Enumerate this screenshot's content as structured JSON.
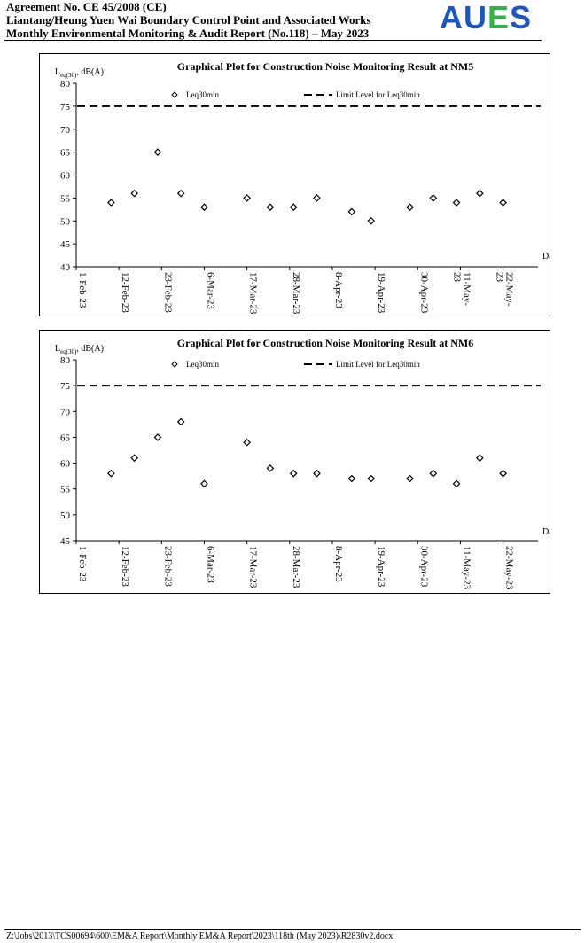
{
  "header": {
    "line1": "Agreement No. CE 45/2008 (CE)",
    "line2": "Liantang/Heung Yuen Wai Boundary Control Point and Associated Works",
    "line3": "Monthly Environmental Monitoring & Audit Report (No.118) – May 2023",
    "logo": {
      "letters": [
        "A",
        "U",
        "E",
        "S"
      ],
      "colors": [
        "#1a56c4",
        "#1a56c4",
        "#2fb34a",
        "#1a56c4"
      ]
    }
  },
  "footer": {
    "path": "Z:\\Jobs\\2013\\TCS00694\\600\\EM&A Report\\Monthly EM&A Report\\2023\\118th (May 2023)\\R2830v2.docx"
  },
  "chart_data": [
    {
      "type": "scatter",
      "title": "Graphical Plot for Construction Noise Monitoring Result at NM5",
      "ylabel_main": "L",
      "ylabel_sub": "eq(30)",
      "ylabel_rest": ", dB(A)",
      "xlabel": "Date",
      "ylim": [
        40,
        80
      ],
      "yticks": [
        40,
        45,
        50,
        55,
        60,
        65,
        70,
        75,
        80
      ],
      "xticks": [
        {
          "date": "2023-02-01",
          "label": [
            "1-Feb-23"
          ]
        },
        {
          "date": "2023-02-12",
          "label": [
            "12-Feb-23"
          ]
        },
        {
          "date": "2023-02-23",
          "label": [
            "23-Feb-23"
          ]
        },
        {
          "date": "2023-03-06",
          "label": [
            "6-Mar-23"
          ]
        },
        {
          "date": "2023-03-17",
          "label": [
            "17-Mar-23"
          ]
        },
        {
          "date": "2023-03-28",
          "label": [
            "28-Mar-23"
          ]
        },
        {
          "date": "2023-04-08",
          "label": [
            "8-Apr-23"
          ]
        },
        {
          "date": "2023-04-19",
          "label": [
            "19-Apr-23"
          ]
        },
        {
          "date": "2023-04-30",
          "label": [
            "30-Apr-23"
          ]
        },
        {
          "date": "2023-05-11",
          "label": [
            "11-May-",
            "23"
          ]
        },
        {
          "date": "2023-05-22",
          "label": [
            "22-May-",
            "23"
          ]
        }
      ],
      "xlim": [
        "2023-02-01",
        "2023-05-31"
      ],
      "limit": {
        "name": "Limit Level for Leq30min",
        "value": 75
      },
      "series": [
        {
          "name": "Leq30min",
          "points": [
            {
              "x": "2023-02-10",
              "y": 54
            },
            {
              "x": "2023-02-16",
              "y": 56
            },
            {
              "x": "2023-02-22",
              "y": 65
            },
            {
              "x": "2023-02-28",
              "y": 56
            },
            {
              "x": "2023-03-06",
              "y": 53
            },
            {
              "x": "2023-03-17",
              "y": 55
            },
            {
              "x": "2023-03-23",
              "y": 53
            },
            {
              "x": "2023-03-29",
              "y": 53
            },
            {
              "x": "2023-04-04",
              "y": 55
            },
            {
              "x": "2023-04-13",
              "y": 52
            },
            {
              "x": "2023-04-18",
              "y": 50
            },
            {
              "x": "2023-04-28",
              "y": 53
            },
            {
              "x": "2023-05-04",
              "y": 55
            },
            {
              "x": "2023-05-10",
              "y": 54
            },
            {
              "x": "2023-05-16",
              "y": 56
            },
            {
              "x": "2023-05-22",
              "y": 54
            }
          ]
        }
      ],
      "legend": "top"
    },
    {
      "type": "scatter",
      "title": "Graphical Plot for Construction Noise Monitoring Result at NM6",
      "ylabel_main": "L",
      "ylabel_sub": "eq(30)",
      "ylabel_rest": ", dB(A)",
      "xlabel": "Date",
      "ylim": [
        45,
        80
      ],
      "yticks": [
        45,
        50,
        55,
        60,
        65,
        70,
        75,
        80
      ],
      "xticks": [
        {
          "date": "2023-02-01",
          "label": [
            "1-Feb-23"
          ]
        },
        {
          "date": "2023-02-12",
          "label": [
            "12-Feb-23"
          ]
        },
        {
          "date": "2023-02-23",
          "label": [
            "23-Feb-23"
          ]
        },
        {
          "date": "2023-03-06",
          "label": [
            "6-Mar-23"
          ]
        },
        {
          "date": "2023-03-17",
          "label": [
            "17-Mar-23"
          ]
        },
        {
          "date": "2023-03-28",
          "label": [
            "28-Mar-23"
          ]
        },
        {
          "date": "2023-04-08",
          "label": [
            "8-Apr-23"
          ]
        },
        {
          "date": "2023-04-19",
          "label": [
            "19-Apr-23"
          ]
        },
        {
          "date": "2023-04-30",
          "label": [
            "30-Apr-23"
          ]
        },
        {
          "date": "2023-05-11",
          "label": [
            "11-May-23"
          ]
        },
        {
          "date": "2023-05-22",
          "label": [
            "22-May-23"
          ]
        }
      ],
      "xlim": [
        "2023-02-01",
        "2023-05-31"
      ],
      "limit": {
        "name": "Limit Level for Leq30min",
        "value": 75
      },
      "series": [
        {
          "name": "Leq30min",
          "points": [
            {
              "x": "2023-02-10",
              "y": 58
            },
            {
              "x": "2023-02-16",
              "y": 61
            },
            {
              "x": "2023-02-22",
              "y": 65
            },
            {
              "x": "2023-02-28",
              "y": 68
            },
            {
              "x": "2023-03-06",
              "y": 56
            },
            {
              "x": "2023-03-17",
              "y": 64
            },
            {
              "x": "2023-03-23",
              "y": 59
            },
            {
              "x": "2023-03-29",
              "y": 58
            },
            {
              "x": "2023-04-04",
              "y": 58
            },
            {
              "x": "2023-04-13",
              "y": 57
            },
            {
              "x": "2023-04-18",
              "y": 57
            },
            {
              "x": "2023-04-28",
              "y": 57
            },
            {
              "x": "2023-05-04",
              "y": 58
            },
            {
              "x": "2023-05-10",
              "y": 56
            },
            {
              "x": "2023-05-16",
              "y": 61
            },
            {
              "x": "2023-05-22",
              "y": 58
            }
          ]
        }
      ],
      "legend": "top"
    }
  ]
}
